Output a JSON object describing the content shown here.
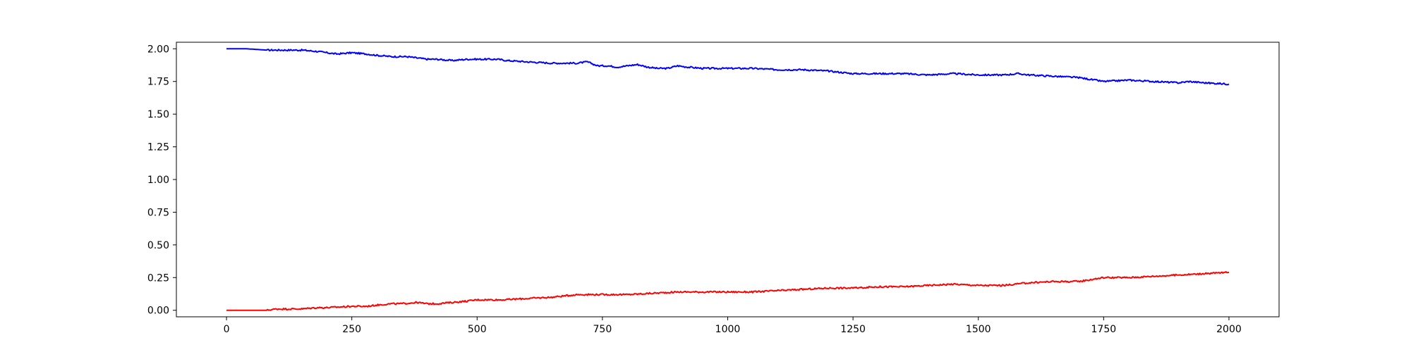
{
  "chart_data": {
    "type": "line",
    "title": "",
    "xlabel": "",
    "ylabel": "",
    "xlim": [
      -100,
      2100
    ],
    "ylim": [
      -0.05,
      2.05
    ],
    "grid": false,
    "legend": "none",
    "x_ticks": [
      0,
      250,
      500,
      750,
      1000,
      1250,
      1500,
      1750,
      2000
    ],
    "x_tick_labels": [
      "0",
      "250",
      "500",
      "750",
      "1000",
      "1250",
      "1500",
      "1750",
      "2000"
    ],
    "y_ticks": [
      0.0,
      0.25,
      0.5,
      0.75,
      1.0,
      1.25,
      1.5,
      1.75,
      2.0
    ],
    "y_tick_labels": [
      "0.00",
      "0.25",
      "0.50",
      "0.75",
      "1.00",
      "1.25",
      "1.50",
      "1.75",
      "2.00"
    ],
    "series": [
      {
        "color": "#0000ff",
        "x": [
          0,
          40,
          80,
          100,
          150,
          180,
          200,
          220,
          250,
          280,
          300,
          330,
          360,
          380,
          400,
          420,
          450,
          480,
          500,
          520,
          540,
          560,
          600,
          650,
          680,
          700,
          720,
          740,
          760,
          780,
          800,
          820,
          840,
          860,
          880,
          900,
          920,
          950,
          1000,
          1050,
          1100,
          1150,
          1200,
          1250,
          1300,
          1350,
          1400,
          1450,
          1500,
          1550,
          1580,
          1600,
          1650,
          1700,
          1750,
          1800,
          1850,
          1900,
          1920,
          1950,
          2000
        ],
        "y": [
          2.0,
          2.0,
          1.99,
          1.99,
          1.99,
          1.98,
          1.97,
          1.96,
          1.97,
          1.96,
          1.95,
          1.94,
          1.94,
          1.93,
          1.92,
          1.92,
          1.91,
          1.92,
          1.92,
          1.92,
          1.92,
          1.91,
          1.9,
          1.89,
          1.89,
          1.89,
          1.9,
          1.87,
          1.87,
          1.86,
          1.87,
          1.88,
          1.86,
          1.85,
          1.85,
          1.87,
          1.86,
          1.85,
          1.85,
          1.85,
          1.84,
          1.84,
          1.83,
          1.81,
          1.81,
          1.81,
          1.8,
          1.81,
          1.8,
          1.8,
          1.81,
          1.8,
          1.79,
          1.78,
          1.75,
          1.76,
          1.75,
          1.74,
          1.75,
          1.74,
          1.73
        ]
      },
      {
        "color": "#ff0000",
        "x": [
          0,
          50,
          80,
          100,
          150,
          180,
          200,
          250,
          280,
          300,
          330,
          350,
          380,
          400,
          420,
          450,
          480,
          500,
          550,
          600,
          650,
          700,
          750,
          800,
          850,
          900,
          950,
          1000,
          1050,
          1100,
          1150,
          1200,
          1250,
          1300,
          1350,
          1400,
          1450,
          1500,
          1550,
          1600,
          1650,
          1700,
          1750,
          1800,
          1850,
          1900,
          1950,
          2000
        ],
        "y": [
          0.0,
          0.0,
          0.0,
          0.01,
          0.01,
          0.02,
          0.02,
          0.03,
          0.03,
          0.04,
          0.05,
          0.05,
          0.06,
          0.05,
          0.05,
          0.06,
          0.07,
          0.08,
          0.08,
          0.09,
          0.1,
          0.12,
          0.12,
          0.12,
          0.13,
          0.14,
          0.14,
          0.14,
          0.14,
          0.15,
          0.16,
          0.17,
          0.17,
          0.18,
          0.18,
          0.19,
          0.2,
          0.19,
          0.19,
          0.21,
          0.22,
          0.22,
          0.25,
          0.25,
          0.26,
          0.27,
          0.28,
          0.29
        ]
      }
    ]
  }
}
